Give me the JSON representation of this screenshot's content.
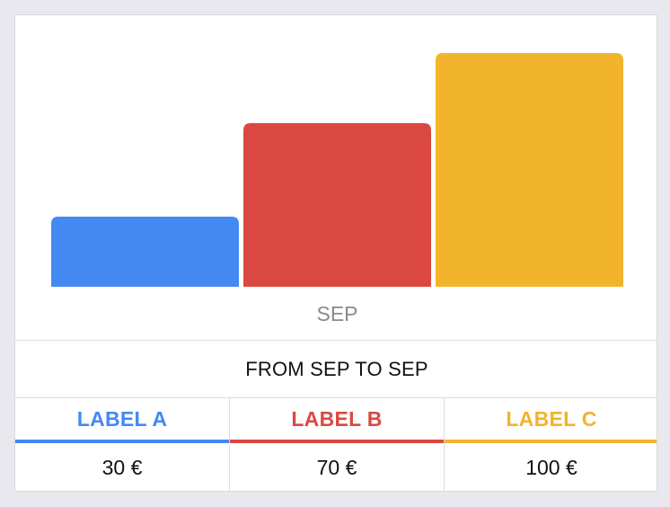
{
  "chart_data": {
    "type": "bar",
    "categories": [
      "SEP"
    ],
    "series": [
      {
        "name": "LABEL A",
        "values": [
          30
        ],
        "color": "#4489f2"
      },
      {
        "name": "LABEL B",
        "values": [
          70
        ],
        "color": "#db4841"
      },
      {
        "name": "LABEL C",
        "values": [
          100
        ],
        "color": "#f2b42c"
      }
    ],
    "ylim": [
      0,
      100
    ],
    "xlabel": "",
    "ylabel": "",
    "grid": false
  },
  "range_text": "FROM SEP TO SEP",
  "summary": [
    {
      "label": "LABEL A",
      "value": "30 €",
      "color": "#4489f2"
    },
    {
      "label": "LABEL B",
      "value": "70 €",
      "color": "#db4841"
    },
    {
      "label": "LABEL C",
      "value": "100 €",
      "color": "#f2b42c"
    }
  ]
}
